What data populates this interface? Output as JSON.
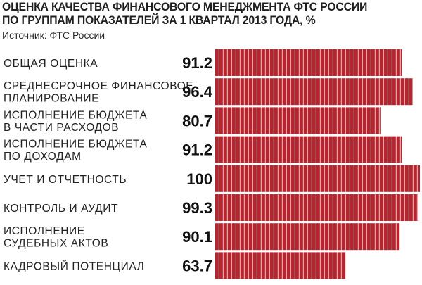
{
  "chart_data": {
    "type": "bar",
    "orientation": "horizontal",
    "title": "ОЦЕНКА КАЧЕСТВА ФИНАНСОВОГО МЕНЕДЖМЕНТА ФТС РОССИИ ПО ГРУППАМ ПОКАЗАТЕЛЕЙ ЗА 1 КВАРТАЛ 2013 ГОДА, %",
    "title_lines": [
      "ОЦЕНКА КАЧЕСТВА ФИНАНСОВОГО МЕНЕДЖМЕНТА ФТС РОССИИ",
      "ПО ГРУППАМ ПОКАЗАТЕЛЕЙ ЗА 1 КВАРТАЛ 2013 ГОДА, %"
    ],
    "source": "Источник: ФТС России",
    "categories": [
      "ОБЩАЯ ОЦЕНКА",
      "СРЕДНЕСРОЧНОЕ ФИНАНСОВОЕ ПЛАНИРОВАНИЕ",
      "ИСПОЛНЕНИЕ БЮДЖЕТА В ЧАСТИ РАСХОДОВ",
      "ИСПОЛНЕНИЕ БЮДЖЕТА ПО ДОХОДАМ",
      "УЧЕТ И ОТЧЕТНОСТЬ",
      "КОНТРОЛЬ И АУДИТ",
      "ИСПОЛНЕНИЕ СУДЕБНЫХ АКТОВ",
      "КАДРОВЫЙ ПОТЕНЦИАЛ"
    ],
    "category_lines": [
      [
        "ОБЩАЯ ОЦЕНКА"
      ],
      [
        "СРЕДНЕСРОЧНОЕ ФИНАНСОВОЕ",
        "ПЛАНИРОВАНИЕ"
      ],
      [
        "ИСПОЛНЕНИЕ БЮДЖЕТА",
        "В ЧАСТИ РАСХОДОВ"
      ],
      [
        "ИСПОЛНЕНИЕ БЮДЖЕТА",
        "ПО ДОХОДАМ"
      ],
      [
        "УЧЕТ И ОТЧЕТНОСТЬ"
      ],
      [
        "КОНТРОЛЬ И АУДИТ"
      ],
      [
        "ИСПОЛНЕНИЕ",
        "СУДЕБНЫХ АКТОВ"
      ],
      [
        "КАДРОВЫЙ ПОТЕНЦИАЛ"
      ]
    ],
    "values": [
      91.2,
      96.4,
      80.7,
      91.2,
      100,
      99.3,
      90.1,
      63.7
    ],
    "value_labels": [
      "91.2",
      "96.4",
      "80.7",
      "91.2",
      "100",
      "99.3",
      "90.1",
      "63.7"
    ],
    "xlim": [
      0,
      100
    ],
    "bar_color": "#b3262f",
    "bar_stripe_color": "#e7a2a6",
    "grid": false,
    "legend": "none"
  }
}
